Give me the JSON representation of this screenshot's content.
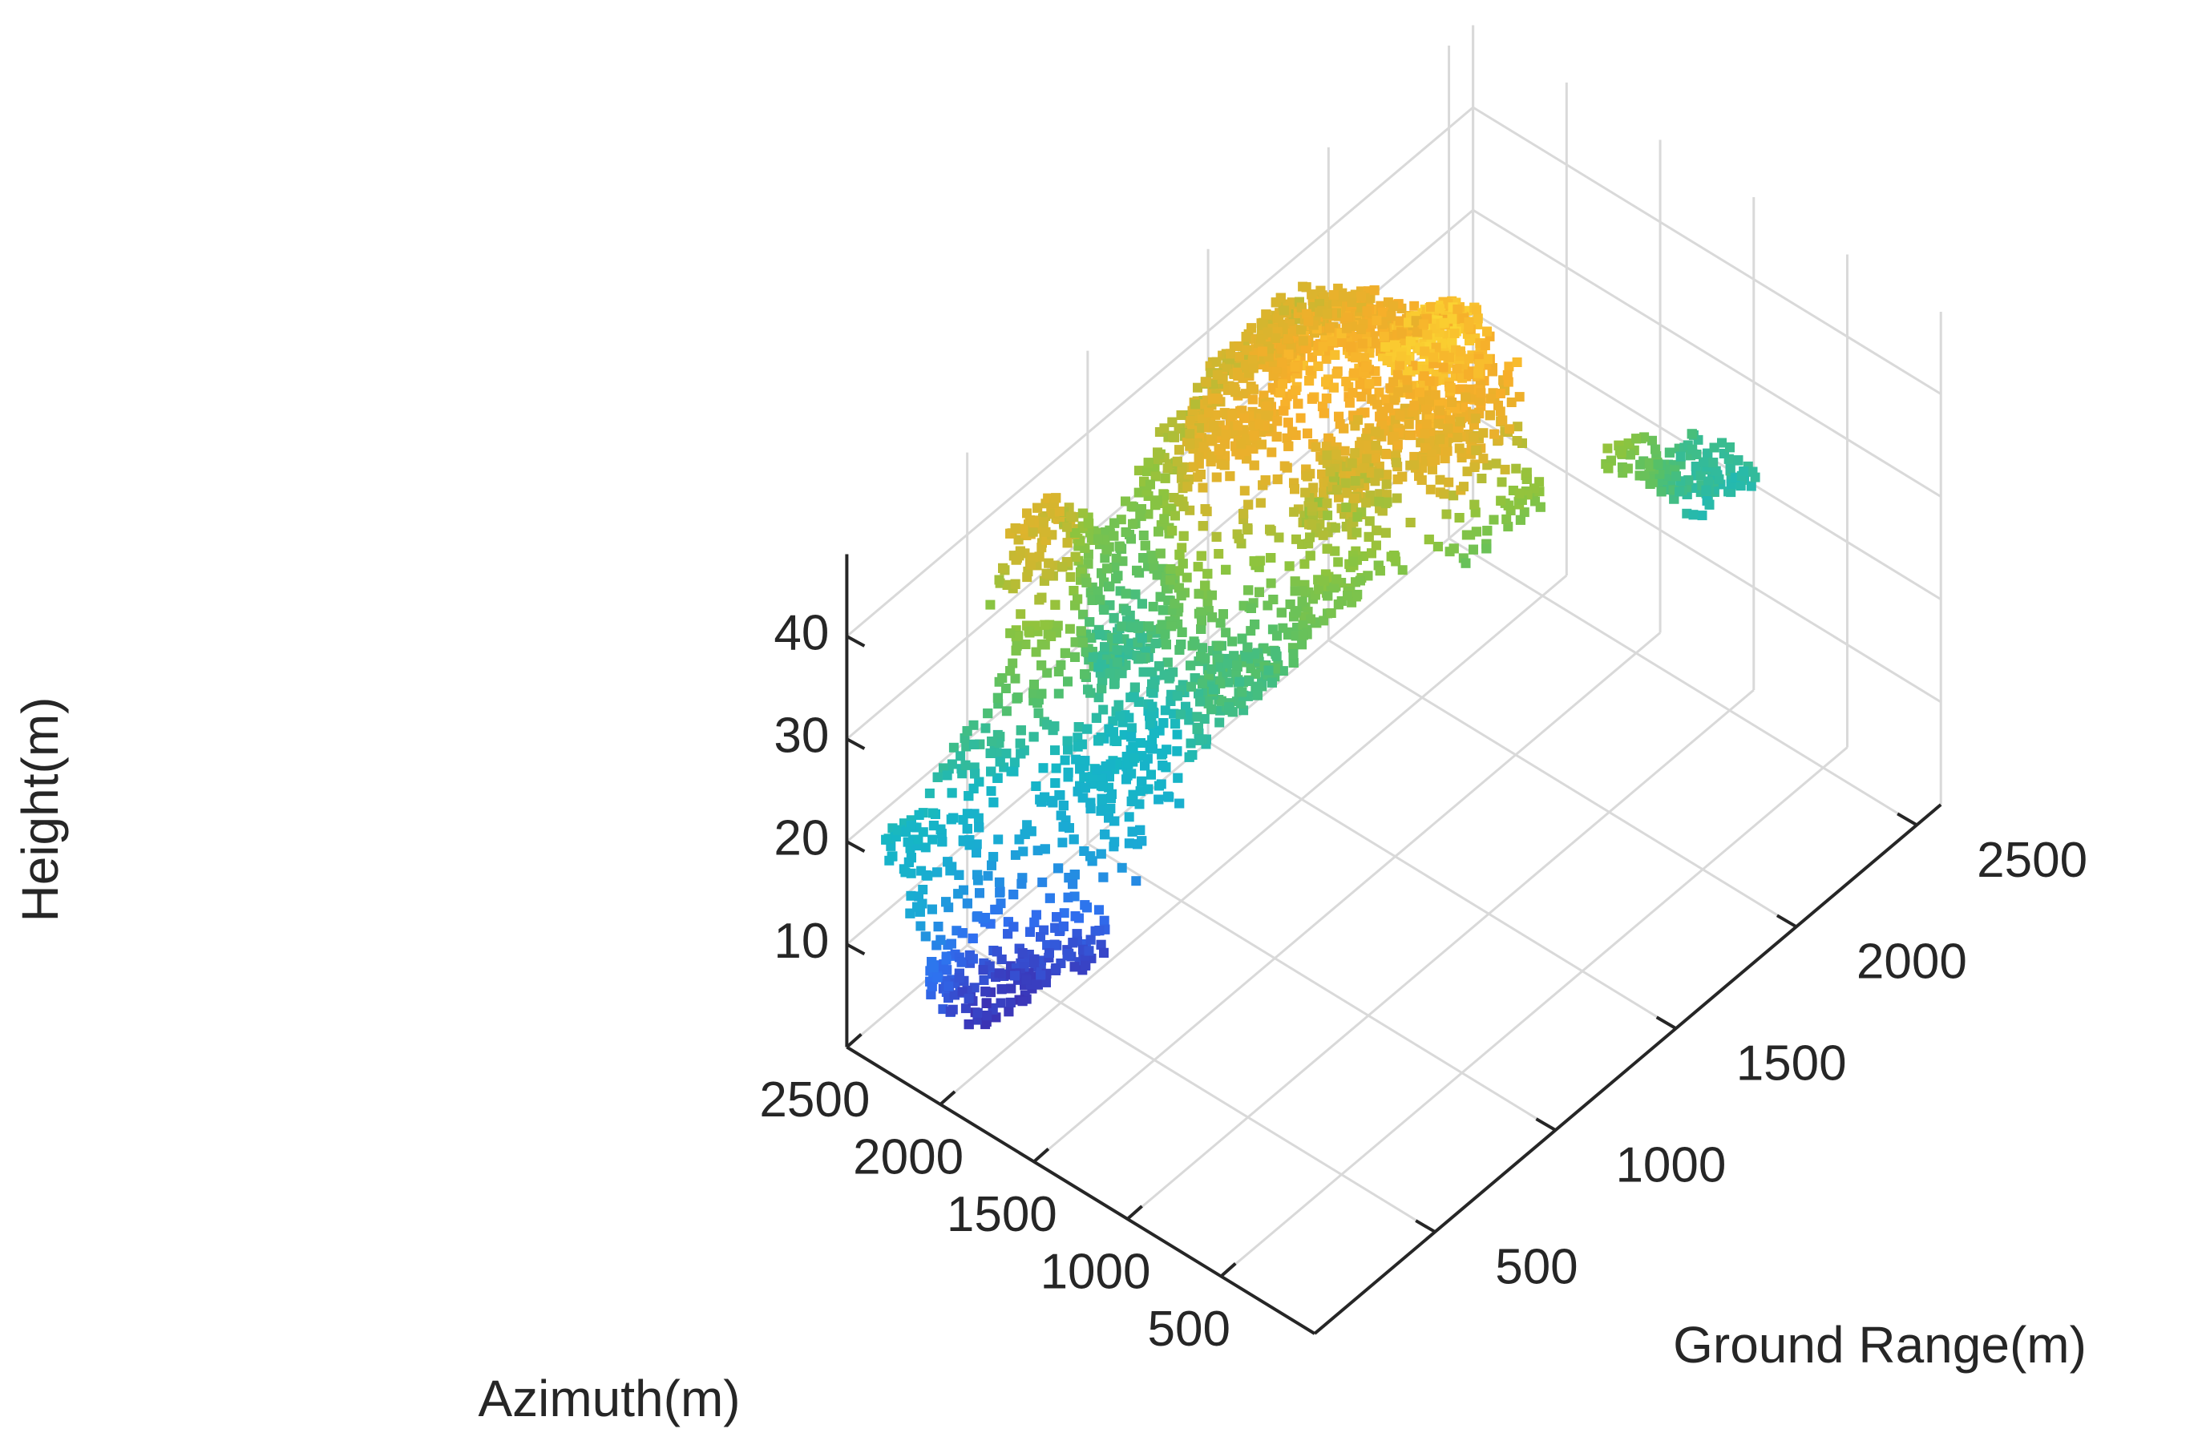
{
  "chart_data": {
    "type": "scatter",
    "dimensions": 3,
    "title": "",
    "xlabel": "Azimuth(m)",
    "ylabel": "Ground Range(m)",
    "zlabel": "Height(m)",
    "xlim": [
      0,
      2500
    ],
    "ylim": [
      0,
      2600
    ],
    "zlim": [
      0,
      48
    ],
    "xticks": [
      500,
      1000,
      1500,
      2000,
      2500
    ],
    "xtick_labels": [
      "500",
      "1000",
      "1500",
      "2000",
      "2500"
    ],
    "yticks": [
      500,
      1000,
      1500,
      2000,
      2500
    ],
    "ytick_labels": [
      "500",
      "1000",
      "1500",
      "2000",
      "2500"
    ],
    "zticks": [
      10,
      20,
      30,
      40
    ],
    "ztick_labels": [
      "10",
      "20",
      "30",
      "40"
    ],
    "grid": true,
    "colormap": "parula",
    "color_scale_colors": [
      "#3e26a8",
      "#2f6ff0",
      "#1ba8d6",
      "#16b7c4",
      "#55c069",
      "#8ec43e",
      "#d8b52e",
      "#f6ad2a",
      "#fbd532"
    ],
    "surface_points": [
      {
        "x": 2500,
        "y": 50,
        "z": 20
      },
      {
        "x": 2500,
        "y": 400,
        "z": 23
      },
      {
        "x": 2400,
        "y": 750,
        "z": 37
      },
      {
        "x": 2250,
        "y": 900,
        "z": 24
      },
      {
        "x": 2050,
        "y": 1300,
        "z": 40
      },
      {
        "x": 1900,
        "y": 1450,
        "z": 44
      },
      {
        "x": 1500,
        "y": 1650,
        "z": 47
      },
      {
        "x": 1100,
        "y": 1900,
        "z": 31
      },
      {
        "x": 800,
        "y": 2550,
        "z": 24
      },
      {
        "x": 750,
        "y": 2550,
        "z": 19
      },
      {
        "x": 1000,
        "y": 1200,
        "z": 14
      },
      {
        "x": 1600,
        "y": 550,
        "z": 10
      },
      {
        "x": 1800,
        "y": 450,
        "z": 7
      },
      {
        "x": 1950,
        "y": 250,
        "z": 6
      },
      {
        "x": 1700,
        "y": 1000,
        "z": 25
      },
      {
        "x": 1400,
        "y": 1300,
        "z": 30
      },
      {
        "x": 1200,
        "y": 1600,
        "z": 26
      },
      {
        "x": 1900,
        "y": 700,
        "z": 20
      }
    ],
    "ridge_points": [
      {
        "x": 1500,
        "y": 1650,
        "z": 47
      },
      {
        "x": 1450,
        "y": 1600,
        "z": 44
      },
      {
        "x": 1550,
        "y": 1550,
        "z": 42
      },
      {
        "x": 1650,
        "y": 1450,
        "z": 39
      },
      {
        "x": 1700,
        "y": 1400,
        "z": 37
      },
      {
        "x": 1400,
        "y": 1700,
        "z": 45
      },
      {
        "x": 1350,
        "y": 1650,
        "z": 41
      }
    ]
  }
}
